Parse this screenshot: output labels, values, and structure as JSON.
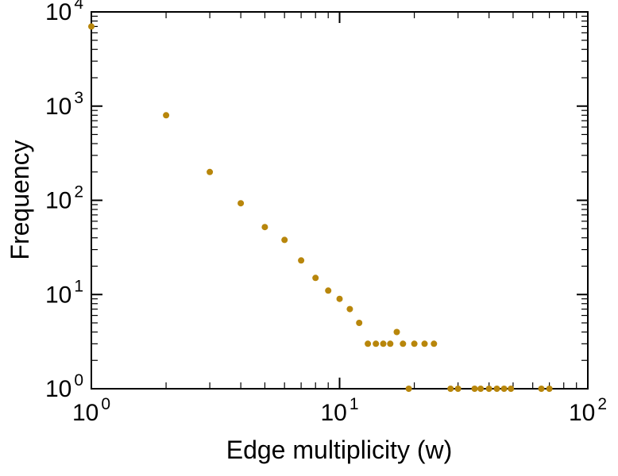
{
  "figure": {
    "background": "#ffffff",
    "frame_color": "#000000",
    "text_color": "#000000"
  },
  "chart_data": {
    "type": "scatter",
    "title": "",
    "xlabel": "Edge multiplicity (w)",
    "ylabel": "Frequency",
    "x_scale": "log",
    "y_scale": "log",
    "xlim": [
      1,
      100
    ],
    "ylim": [
      1,
      10000
    ],
    "x_tick_exponents": [
      0,
      1,
      2
    ],
    "y_tick_exponents": [
      0,
      1,
      2,
      3,
      4
    ],
    "x_tick_labels": [
      "10^0",
      "10^1",
      "10^2"
    ],
    "y_tick_labels": [
      "10^0",
      "10^1",
      "10^2",
      "10^3",
      "10^4"
    ],
    "grid": false,
    "legend": "none",
    "point_color": "#b8860b",
    "point_radius": 4,
    "points": [
      [
        1,
        7000
      ],
      [
        2,
        800
      ],
      [
        3,
        200
      ],
      [
        4,
        93
      ],
      [
        5,
        52
      ],
      [
        6,
        38
      ],
      [
        7,
        23
      ],
      [
        8,
        15
      ],
      [
        9,
        11
      ],
      [
        10,
        9
      ],
      [
        11,
        7
      ],
      [
        12,
        5
      ],
      [
        13,
        3
      ],
      [
        14,
        3
      ],
      [
        15,
        3
      ],
      [
        16,
        3
      ],
      [
        17,
        4
      ],
      [
        18,
        3
      ],
      [
        19,
        1
      ],
      [
        20,
        3
      ],
      [
        22,
        3
      ],
      [
        24,
        3
      ],
      [
        28,
        1
      ],
      [
        30,
        1
      ],
      [
        35,
        1
      ],
      [
        37,
        1
      ],
      [
        40,
        1
      ],
      [
        43,
        1
      ],
      [
        46,
        1
      ],
      [
        49,
        1
      ],
      [
        65,
        1
      ],
      [
        70,
        1
      ]
    ]
  }
}
